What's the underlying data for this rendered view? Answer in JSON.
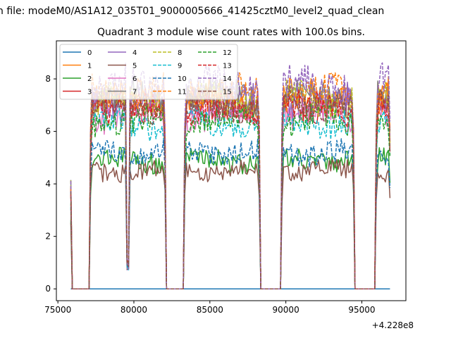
{
  "figure": {
    "suptitle": "n file: modeM0/AS1A12_035T01_9000005666_41425cztM0_level2_quad_clean"
  },
  "chart_data": {
    "type": "line",
    "title": "Quadrant 3 module wise count rates with 100.0s bins.",
    "xlabel": "",
    "ylabel": "",
    "x_offset_label": "+4.228e8",
    "xlim": [
      74900,
      97900
    ],
    "ylim": [
      -0.45,
      9.45
    ],
    "xticks": [
      75000,
      80000,
      85000,
      90000,
      95000
    ],
    "xtick_labels": [
      "75000",
      "80000",
      "85000",
      "90000",
      "95000"
    ],
    "yticks": [
      0,
      2,
      4,
      6,
      8
    ],
    "ytick_labels": [
      "0",
      "2",
      "4",
      "6",
      "8"
    ],
    "bin_seconds": 100,
    "x_start": 75850,
    "x_end": 96850,
    "good_time_intervals": [
      [
        77100,
        82100
      ],
      [
        83300,
        88300
      ],
      [
        89700,
        94500
      ],
      [
        95900,
        96850
      ]
    ],
    "dip_times": [
      79600
    ],
    "legend": {
      "location": "top-left",
      "columns": 4,
      "entries": [
        "0",
        "1",
        "2",
        "3",
        "4",
        "5",
        "6",
        "7",
        "8",
        "9",
        "10",
        "11",
        "12",
        "13",
        "14",
        "15"
      ]
    },
    "series": [
      {
        "name": "0",
        "color": "#1f77b4",
        "dashed": false,
        "level": 0.0
      },
      {
        "name": "1",
        "color": "#ff7f0e",
        "dashed": false,
        "level": 7.3
      },
      {
        "name": "2",
        "color": "#2ca02c",
        "dashed": false,
        "level": 4.9
      },
      {
        "name": "3",
        "color": "#d62728",
        "dashed": false,
        "level": 7.0
      },
      {
        "name": "4",
        "color": "#9467bd",
        "dashed": false,
        "level": 7.1
      },
      {
        "name": "5",
        "color": "#8c564b",
        "dashed": false,
        "level": 4.5
      },
      {
        "name": "6",
        "color": "#e377c2",
        "dashed": false,
        "level": 6.6
      },
      {
        "name": "7",
        "color": "#7f7f7f",
        "dashed": false,
        "level": 7.3
      },
      {
        "name": "8",
        "color": "#bcbd22",
        "dashed": true,
        "level": 7.2
      },
      {
        "name": "9",
        "color": "#17becf",
        "dashed": true,
        "level": 6.3
      },
      {
        "name": "10",
        "color": "#1f77b4",
        "dashed": true,
        "level": 5.2
      },
      {
        "name": "11",
        "color": "#ff7f0e",
        "dashed": true,
        "level": 7.5
      },
      {
        "name": "12",
        "color": "#2ca02c",
        "dashed": true,
        "level": 6.4
      },
      {
        "name": "13",
        "color": "#d62728",
        "dashed": true,
        "level": 6.9
      },
      {
        "name": "14",
        "color": "#9467bd",
        "dashed": true,
        "level": 7.8
      },
      {
        "name": "15",
        "color": "#8c564b",
        "dashed": true,
        "level": 7.0
      }
    ]
  }
}
